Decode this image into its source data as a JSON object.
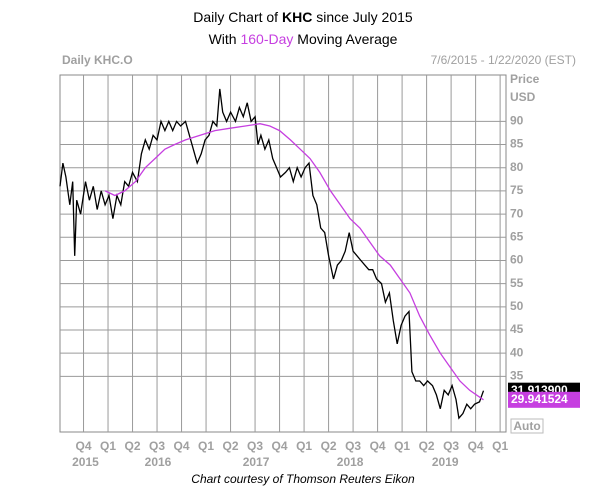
{
  "chart_data": {
    "type": "line",
    "title_parts": [
      "Daily Chart of",
      "KHC",
      "since July 2015"
    ],
    "subtitle_parts": [
      "With",
      "160-Day",
      "Moving Average"
    ],
    "header_left": "Daily KHC.O",
    "header_right": "7/6/2015 - 1/22/2020 (EST)",
    "y_label": [
      "Price",
      "USD"
    ],
    "auto_label": "Auto",
    "footer": "Chart courtesy of Thomson Reuters Eikon",
    "xlim": [
      2015.51,
      2020.06
    ],
    "ylim": [
      23,
      100
    ],
    "yticks": [
      35,
      40,
      45,
      50,
      55,
      60,
      65,
      70,
      75,
      80,
      85,
      90
    ],
    "xticks": [
      {
        "value": 2015.75,
        "label": "Q4"
      },
      {
        "value": 2016.0,
        "label": "Q1"
      },
      {
        "value": 2016.25,
        "label": "Q2"
      },
      {
        "value": 2016.5,
        "label": "Q3"
      },
      {
        "value": 2016.75,
        "label": "Q4"
      },
      {
        "value": 2017.0,
        "label": "Q1"
      },
      {
        "value": 2017.25,
        "label": "Q2"
      },
      {
        "value": 2017.5,
        "label": "Q3"
      },
      {
        "value": 2017.75,
        "label": "Q4"
      },
      {
        "value": 2018.0,
        "label": "Q1"
      },
      {
        "value": 2018.25,
        "label": "Q2"
      },
      {
        "value": 2018.5,
        "label": "Q3"
      },
      {
        "value": 2018.75,
        "label": "Q4"
      },
      {
        "value": 2019.0,
        "label": "Q1"
      },
      {
        "value": 2019.25,
        "label": "Q2"
      },
      {
        "value": 2019.5,
        "label": "Q3"
      },
      {
        "value": 2019.75,
        "label": "Q4"
      },
      {
        "value": 2020.0,
        "label": "Q1"
      }
    ],
    "year_labels": [
      {
        "value": 2015.77,
        "label": "2015"
      },
      {
        "value": 2016.51,
        "label": "2016"
      },
      {
        "value": 2017.51,
        "label": "2017"
      },
      {
        "value": 2018.47,
        "label": "2018"
      },
      {
        "value": 2019.44,
        "label": "2019"
      }
    ],
    "grid": true,
    "series": [
      {
        "name": "KHC.O",
        "color": "#000000",
        "x": [
          2015.51,
          2015.54,
          2015.57,
          2015.61,
          2015.64,
          2015.66,
          2015.68,
          2015.72,
          2015.77,
          2015.81,
          2015.85,
          2015.89,
          2015.93,
          2015.97,
          2016.01,
          2016.05,
          2016.09,
          2016.13,
          2016.17,
          2016.21,
          2016.25,
          2016.3,
          2016.34,
          2016.38,
          2016.42,
          2016.46,
          2016.5,
          2016.54,
          2016.58,
          2016.62,
          2016.66,
          2016.7,
          2016.74,
          2016.79,
          2016.83,
          2016.87,
          2016.91,
          2016.95,
          2016.99,
          2017.03,
          2017.07,
          2017.11,
          2017.14,
          2017.17,
          2017.21,
          2017.25,
          2017.3,
          2017.34,
          2017.38,
          2017.42,
          2017.46,
          2017.5,
          2017.53,
          2017.56,
          2017.6,
          2017.64,
          2017.68,
          2017.72,
          2017.76,
          2017.81,
          2017.85,
          2017.89,
          2017.93,
          2017.97,
          2018.01,
          2018.05,
          2018.09,
          2018.13,
          2018.17,
          2018.21,
          2018.25,
          2018.3,
          2018.34,
          2018.38,
          2018.42,
          2018.46,
          2018.5,
          2018.54,
          2018.58,
          2018.62,
          2018.66,
          2018.7,
          2018.74,
          2018.79,
          2018.83,
          2018.87,
          2018.91,
          2018.95,
          2018.99,
          2019.03,
          2019.07,
          2019.1,
          2019.14,
          2019.18,
          2019.22,
          2019.26,
          2019.31,
          2019.35,
          2019.39,
          2019.43,
          2019.47,
          2019.51,
          2019.55,
          2019.58,
          2019.62,
          2019.66,
          2019.7,
          2019.74,
          2019.79,
          2019.83
        ],
        "values": [
          76,
          81,
          78,
          72,
          77,
          61,
          73,
          70,
          77,
          73,
          76,
          71,
          75,
          72,
          74,
          69,
          74,
          72,
          77,
          76,
          79,
          77,
          83,
          86,
          84,
          87,
          86,
          90,
          88,
          90,
          88,
          90,
          89,
          90,
          87,
          84,
          81,
          83,
          86,
          87,
          90,
          89,
          97,
          92,
          90,
          92,
          90,
          93,
          91,
          94,
          90,
          91,
          85,
          87,
          84,
          86,
          82,
          80,
          78,
          79,
          80,
          77,
          80,
          78,
          80,
          81,
          74,
          72,
          67,
          66,
          61,
          56,
          59,
          60,
          62,
          66,
          62,
          61,
          60,
          59,
          58,
          58,
          56,
          55,
          51,
          53,
          47,
          42,
          46,
          48,
          49,
          36,
          34,
          34,
          33,
          34,
          33,
          31,
          28,
          32,
          31,
          33,
          30,
          26,
          27,
          29,
          28,
          29,
          29.5,
          31.9
        ]
      },
      {
        "name": "160-Day Moving Average",
        "color": "#c63fe0",
        "x": [
          2015.97,
          2016.07,
          2016.17,
          2016.28,
          2016.38,
          2016.48,
          2016.58,
          2016.68,
          2016.79,
          2016.94,
          2017.09,
          2017.24,
          2017.4,
          2017.55,
          2017.65,
          2017.75,
          2017.86,
          2017.96,
          2018.06,
          2018.16,
          2018.27,
          2018.37,
          2018.47,
          2018.57,
          2018.67,
          2018.77,
          2018.88,
          2018.98,
          2019.08,
          2019.18,
          2019.28,
          2019.39,
          2019.49,
          2019.59,
          2019.69,
          2019.83
        ],
        "values": [
          75,
          74,
          75,
          77,
          80,
          82,
          84,
          85,
          86,
          87,
          88,
          88.5,
          89,
          89.5,
          89,
          88,
          86,
          84,
          82,
          79,
          75,
          72,
          69,
          67,
          64,
          61,
          59,
          56,
          53,
          48,
          44,
          40,
          37,
          34,
          32,
          29.94
        ]
      }
    ],
    "last_labels": [
      {
        "value": 31.9139,
        "label": "31.913900",
        "color": "#000000"
      },
      {
        "value": 29.941524,
        "label": "29.941524",
        "color": "#c63fe0"
      }
    ]
  }
}
